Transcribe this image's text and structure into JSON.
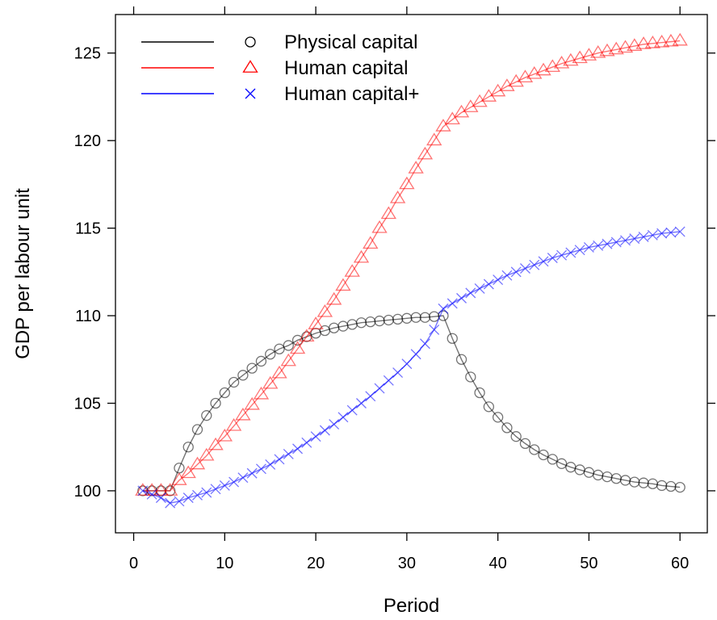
{
  "chart_data": {
    "type": "line",
    "title": "",
    "xlabel": "Period",
    "ylabel": "GDP per labour unit",
    "xlim": [
      -2,
      63
    ],
    "ylim": [
      97.6,
      127.2
    ],
    "xticks": [
      0,
      10,
      20,
      30,
      40,
      50,
      60
    ],
    "yticks": [
      100,
      105,
      110,
      115,
      120,
      125
    ],
    "xtick_labels": [
      "0",
      "10",
      "20",
      "30",
      "40",
      "50",
      "60"
    ],
    "ytick_labels": [
      "100",
      "105",
      "110",
      "115",
      "120",
      "125"
    ],
    "grid": false,
    "legend": {
      "position": "top-left",
      "entries": [
        "Physical capital",
        "Human capital",
        "Human capital+"
      ]
    },
    "series": [
      {
        "name": "Physical capital",
        "color": "#000000",
        "marker": "circle",
        "x": [
          1,
          2,
          3,
          4,
          5,
          6,
          7,
          8,
          9,
          10,
          11,
          12,
          13,
          14,
          15,
          16,
          17,
          18,
          19,
          20,
          21,
          22,
          23,
          24,
          25,
          26,
          27,
          28,
          29,
          30,
          31,
          32,
          33,
          34,
          35,
          36,
          37,
          38,
          39,
          40,
          41,
          42,
          43,
          44,
          45,
          46,
          47,
          48,
          49,
          50,
          51,
          52,
          53,
          54,
          55,
          56,
          57,
          58,
          59,
          60
        ],
        "values": [
          100.0,
          100.0,
          100.0,
          100.0,
          101.3,
          102.5,
          103.5,
          104.3,
          105.0,
          105.6,
          106.2,
          106.6,
          107.0,
          107.4,
          107.8,
          108.1,
          108.3,
          108.6,
          108.8,
          109.0,
          109.15,
          109.3,
          109.4,
          109.5,
          109.6,
          109.65,
          109.7,
          109.75,
          109.8,
          109.85,
          109.9,
          109.9,
          109.95,
          110.0,
          108.7,
          107.5,
          106.5,
          105.6,
          104.8,
          104.2,
          103.6,
          103.1,
          102.7,
          102.35,
          102.05,
          101.8,
          101.55,
          101.35,
          101.2,
          101.05,
          100.9,
          100.8,
          100.7,
          100.6,
          100.5,
          100.45,
          100.4,
          100.3,
          100.25,
          100.2
        ]
      },
      {
        "name": "Human capital",
        "color": "#ff0000",
        "marker": "triangle",
        "x": [
          1,
          2,
          3,
          4,
          5,
          6,
          7,
          8,
          9,
          10,
          11,
          12,
          13,
          14,
          15,
          16,
          17,
          18,
          19,
          20,
          21,
          22,
          23,
          24,
          25,
          26,
          27,
          28,
          29,
          30,
          31,
          32,
          33,
          34,
          35,
          36,
          37,
          38,
          39,
          40,
          41,
          42,
          43,
          44,
          45,
          46,
          47,
          48,
          49,
          50,
          51,
          52,
          53,
          54,
          55,
          56,
          57,
          58,
          59,
          60
        ],
        "values": [
          100.0,
          100.0,
          100.0,
          100.0,
          100.6,
          101.0,
          101.5,
          102.0,
          102.6,
          103.1,
          103.7,
          104.3,
          104.9,
          105.5,
          106.1,
          106.7,
          107.4,
          108.1,
          108.8,
          109.5,
          110.2,
          110.9,
          111.7,
          112.5,
          113.3,
          114.1,
          115.0,
          115.8,
          116.7,
          117.5,
          118.4,
          119.2,
          120.0,
          120.8,
          121.2,
          121.6,
          121.9,
          122.2,
          122.5,
          122.8,
          123.1,
          123.35,
          123.6,
          123.8,
          124.0,
          124.2,
          124.4,
          124.55,
          124.7,
          124.85,
          125.0,
          125.1,
          125.2,
          125.3,
          125.4,
          125.5,
          125.55,
          125.6,
          125.65,
          125.7
        ]
      },
      {
        "name": "Human capital+",
        "color": "#0000ff",
        "marker": "cross",
        "x": [
          1,
          2,
          3,
          4,
          5,
          6,
          7,
          8,
          9,
          10,
          11,
          12,
          13,
          14,
          15,
          16,
          17,
          18,
          19,
          20,
          21,
          22,
          23,
          24,
          25,
          26,
          27,
          28,
          29,
          30,
          31,
          32,
          33,
          34,
          35,
          36,
          37,
          38,
          39,
          40,
          41,
          42,
          43,
          44,
          45,
          46,
          47,
          48,
          49,
          50,
          51,
          52,
          53,
          54,
          55,
          56,
          57,
          58,
          59,
          60
        ],
        "values": [
          100.0,
          99.8,
          99.6,
          99.3,
          99.4,
          99.6,
          99.75,
          99.9,
          100.1,
          100.3,
          100.5,
          100.75,
          101.0,
          101.25,
          101.5,
          101.8,
          102.1,
          102.4,
          102.75,
          103.1,
          103.45,
          103.8,
          104.2,
          104.6,
          105.0,
          105.4,
          105.85,
          106.3,
          106.75,
          107.25,
          107.8,
          108.4,
          109.2,
          110.4,
          110.7,
          111.0,
          111.3,
          111.55,
          111.8,
          112.05,
          112.3,
          112.5,
          112.7,
          112.9,
          113.1,
          113.3,
          113.45,
          113.6,
          113.75,
          113.9,
          114.0,
          114.1,
          114.2,
          114.3,
          114.4,
          114.5,
          114.6,
          114.7,
          114.75,
          114.8
        ]
      }
    ]
  }
}
